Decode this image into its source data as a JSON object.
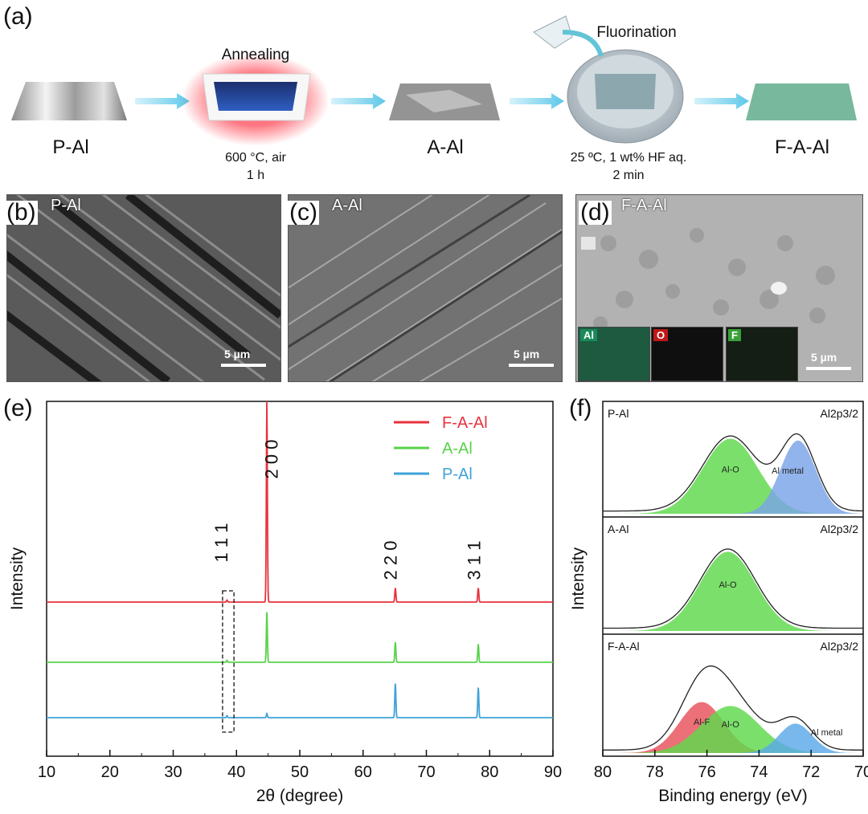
{
  "panel_labels": {
    "a": "(a)",
    "b": "(b)",
    "c": "(c)",
    "d": "(d)",
    "e": "(e)",
    "f": "(f)"
  },
  "process": {
    "steps": [
      "P-Al",
      "A-Al",
      "F-A-Al"
    ],
    "annealing": {
      "title": "Annealing",
      "condition1": "600 °C, air",
      "condition2": "1 h"
    },
    "fluorination": {
      "title": "Fluorination",
      "condition1": "25 ºC, 1 wt% HF aq.",
      "condition2": "2 min"
    }
  },
  "sem": {
    "b": {
      "tag": "P-Al",
      "scale": "5 µm"
    },
    "c": {
      "tag": "A-Al",
      "scale": "5 µm"
    },
    "d": {
      "tag": "F-A-Al",
      "scale": "5 µm",
      "eds": [
        {
          "element": "Al",
          "color": "#1a8a5a"
        },
        {
          "element": "O",
          "color": "#c01818"
        },
        {
          "element": "F",
          "color": "#3aa03a"
        }
      ]
    }
  },
  "chart_data": [
    {
      "type": "line",
      "xlabel": "2θ (degree)",
      "ylabel": "Intensity",
      "xlim": [
        10,
        90
      ],
      "xticks": [
        10,
        20,
        30,
        40,
        50,
        60,
        70,
        80,
        90
      ],
      "series": [
        {
          "name": "F-A-Al",
          "color": "#e8323c",
          "peaks": [
            [
              38.5,
              0.01
            ],
            [
              44.8,
              1.0
            ],
            [
              65.1,
              0.07
            ],
            [
              78.2,
              0.07
            ]
          ]
        },
        {
          "name": "A-Al",
          "color": "#58d24a",
          "peaks": [
            [
              38.5,
              0.01
            ],
            [
              44.8,
              0.25
            ],
            [
              65.1,
              0.1
            ],
            [
              78.2,
              0.09
            ]
          ]
        },
        {
          "name": "P-Al",
          "color": "#3ea2d8",
          "peaks": [
            [
              38.5,
              0.01
            ],
            [
              44.8,
              0.02
            ],
            [
              65.1,
              0.17
            ],
            [
              78.2,
              0.15
            ]
          ]
        }
      ],
      "peak_labels": [
        {
          "text": "1 1 1",
          "x": 38.5
        },
        {
          "text": "2 0 0",
          "x": 44.8
        },
        {
          "text": "2 2 0",
          "x": 65.1
        },
        {
          "text": "3 1 1",
          "x": 78.2
        }
      ]
    },
    {
      "type": "area",
      "xlabel": "Binding energy (eV)",
      "ylabel": "Intensity",
      "xlim": [
        80,
        70
      ],
      "xticks": [
        80,
        78,
        76,
        74,
        72,
        70
      ],
      "subplots": [
        {
          "sample": "P-Al",
          "region": "Al2p3/2",
          "components": [
            {
              "name": "Al-O",
              "center": 75.1,
              "height": 0.82,
              "fwhm": 2.5,
              "color": "#5ed94a"
            },
            {
              "name": "Al metal",
              "center": 72.5,
              "height": 0.8,
              "fwhm": 1.6,
              "color": "#7aa4e8"
            }
          ]
        },
        {
          "sample": "A-Al",
          "region": "Al2p3/2",
          "components": [
            {
              "name": "Al-O",
              "center": 75.2,
              "height": 0.85,
              "fwhm": 2.5,
              "color": "#5ed94a"
            }
          ]
        },
        {
          "sample": "F-A-Al",
          "region": "Al2p3/2",
          "components": [
            {
              "name": "Al-F",
              "center": 76.2,
              "height": 0.52,
              "fwhm": 2.0,
              "color": "#e8505a"
            },
            {
              "name": "Al-O",
              "center": 75.1,
              "height": 0.48,
              "fwhm": 2.6,
              "color": "#5ed94a"
            },
            {
              "name": "Al metal",
              "center": 72.6,
              "height": 0.3,
              "fwhm": 1.5,
              "color": "#5aa8e8"
            }
          ]
        }
      ]
    }
  ]
}
